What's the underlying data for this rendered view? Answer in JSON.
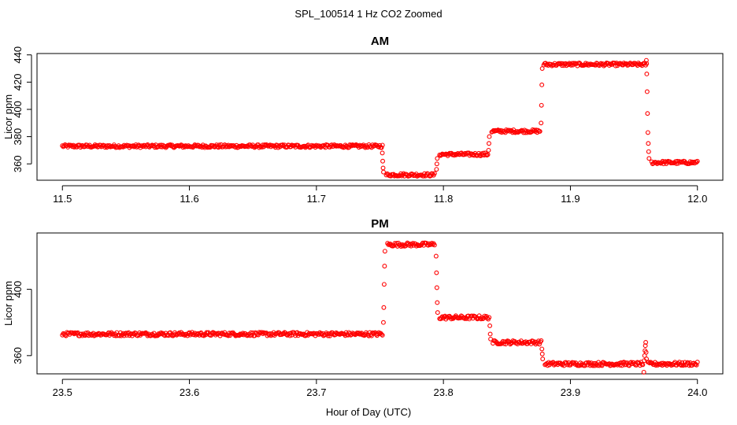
{
  "figure": {
    "title": "SPL_100514  1 Hz CO2 Zoomed",
    "xlabel": "Hour of Day (UTC)"
  },
  "chart_data": [
    {
      "type": "scatter",
      "title": "AM",
      "xlabel": "",
      "ylabel": "Licor ppm",
      "xlim": [
        11.48,
        12.02
      ],
      "ylim": [
        348,
        441
      ],
      "x_ticks": [
        11.5,
        11.6,
        11.7,
        11.8,
        11.9,
        12.0
      ],
      "x_tick_labels": [
        "11.5",
        "11.6",
        "11.7",
        "11.8",
        "11.9",
        "12.0"
      ],
      "y_ticks": [
        360,
        380,
        400,
        420,
        440
      ],
      "y_tick_labels": [
        "360",
        "380",
        "400",
        "420",
        "440"
      ],
      "marker": "open-circle",
      "color": "#ff0000",
      "segments": [
        {
          "x_start": 11.5,
          "x_end": 11.752,
          "y": 373
        },
        {
          "x_start": 11.755,
          "x_end": 11.793,
          "y": 352
        },
        {
          "x_start": 11.797,
          "x_end": 11.835,
          "y": 367
        },
        {
          "x_start": 11.838,
          "x_end": 11.876,
          "y": 384
        },
        {
          "x_start": 11.879,
          "x_end": 11.96,
          "y": 433
        },
        {
          "x_start": 11.964,
          "x_end": 12.0,
          "y": 361
        }
      ],
      "transitions": [
        {
          "x": 11.7525,
          "y": [
            368,
            362,
            357,
            354
          ]
        },
        {
          "x": 11.795,
          "y": [
            356,
            360,
            364
          ]
        },
        {
          "x": 11.836,
          "y": [
            370,
            375,
            380
          ]
        },
        {
          "x": 11.8775,
          "y": [
            390,
            403,
            418,
            430
          ]
        },
        {
          "x": 11.961,
          "y": [
            436,
            426,
            413,
            397,
            383,
            375,
            369,
            364
          ]
        }
      ]
    },
    {
      "type": "scatter",
      "title": "PM",
      "xlabel": "",
      "ylabel": "Licor ppm",
      "xlim": [
        23.48,
        24.02
      ],
      "ylim": [
        349,
        434
      ],
      "x_ticks": [
        23.5,
        23.6,
        23.7,
        23.8,
        23.9,
        24.0
      ],
      "x_tick_labels": [
        "23.5",
        "23.6",
        "23.7",
        "23.8",
        "23.9",
        "24.0"
      ],
      "y_ticks": [
        360,
        400
      ],
      "y_tick_labels": [
        "360",
        "400"
      ],
      "marker": "open-circle",
      "color": "#ff0000",
      "segments": [
        {
          "x_start": 23.5,
          "x_end": 23.752,
          "y": 373
        },
        {
          "x_start": 23.756,
          "x_end": 23.793,
          "y": 427
        },
        {
          "x_start": 23.797,
          "x_end": 23.836,
          "y": 383
        },
        {
          "x_start": 23.839,
          "x_end": 23.877,
          "y": 368
        },
        {
          "x_start": 23.88,
          "x_end": 23.957,
          "y": 355
        },
        {
          "x_start": 23.961,
          "x_end": 24.0,
          "y": 355
        }
      ],
      "transitions": [
        {
          "x": 23.7535,
          "y": [
            380,
            389,
            403,
            414,
            423
          ]
        },
        {
          "x": 23.795,
          "y": [
            420,
            410,
            401,
            392,
            386
          ]
        },
        {
          "x": 23.837,
          "y": [
            378,
            373,
            370
          ]
        },
        {
          "x": 23.878,
          "y": [
            364,
            361,
            358
          ]
        },
        {
          "x": 23.959,
          "y": [
            350,
            357,
            360,
            363,
            366,
            368,
            362,
            358
          ]
        }
      ]
    }
  ]
}
